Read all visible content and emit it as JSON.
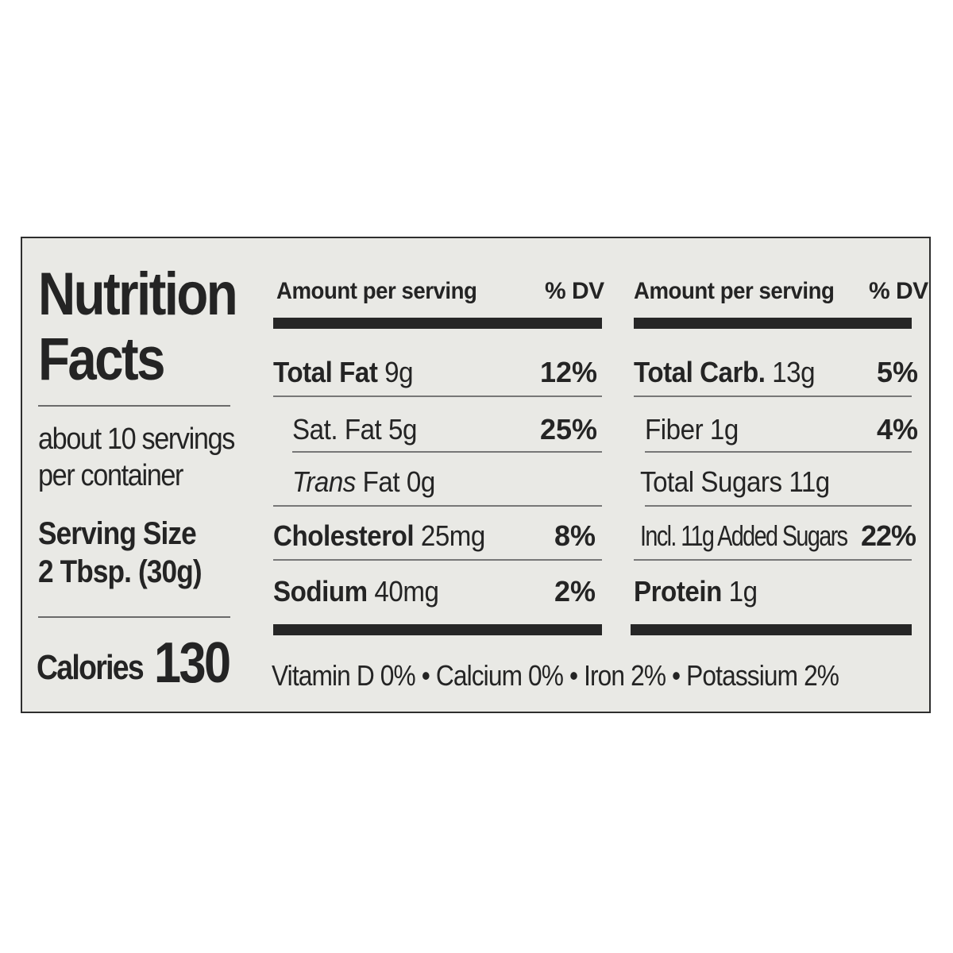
{
  "title_line1": "Nutrition",
  "title_line2": "Facts",
  "servings_line1": "about 10 servings",
  "servings_line2": "per container",
  "serving_size_label": "Serving Size",
  "serving_size_value": "2 Tbsp. (30g)",
  "calories_label": "Calories",
  "calories_value": "130",
  "left_header": {
    "amount": "Amount per serving",
    "dv": "% DV"
  },
  "right_header": {
    "amount": "Amount per serving",
    "dv": "% DV"
  },
  "left_rows": [
    {
      "name": "Total Fat",
      "amount": " 9g",
      "dv": "12%"
    },
    {
      "name": "Sat. Fat 5g",
      "dv": "25%"
    },
    {
      "name_italic": "Trans",
      "name_rest": " Fat 0g"
    },
    {
      "name": "Cholesterol",
      "amount": " 25mg",
      "dv": "8%"
    },
    {
      "name": "Sodium",
      "amount": " 40mg",
      "dv": "2%"
    }
  ],
  "right_rows": [
    {
      "name": "Total Carb.",
      "amount": " 13g",
      "dv": "5%"
    },
    {
      "name": "Fiber 1g",
      "dv": "4%"
    },
    {
      "name": "Total Sugars 11g"
    },
    {
      "name": "Incl. 11g Added Sugars",
      "dv": "22%"
    },
    {
      "name": "Protein",
      "amount": " 1g"
    }
  ],
  "vitamins": "Vitamin D 0% • Calcium 0% • Iron 2% • Potassium 2%"
}
